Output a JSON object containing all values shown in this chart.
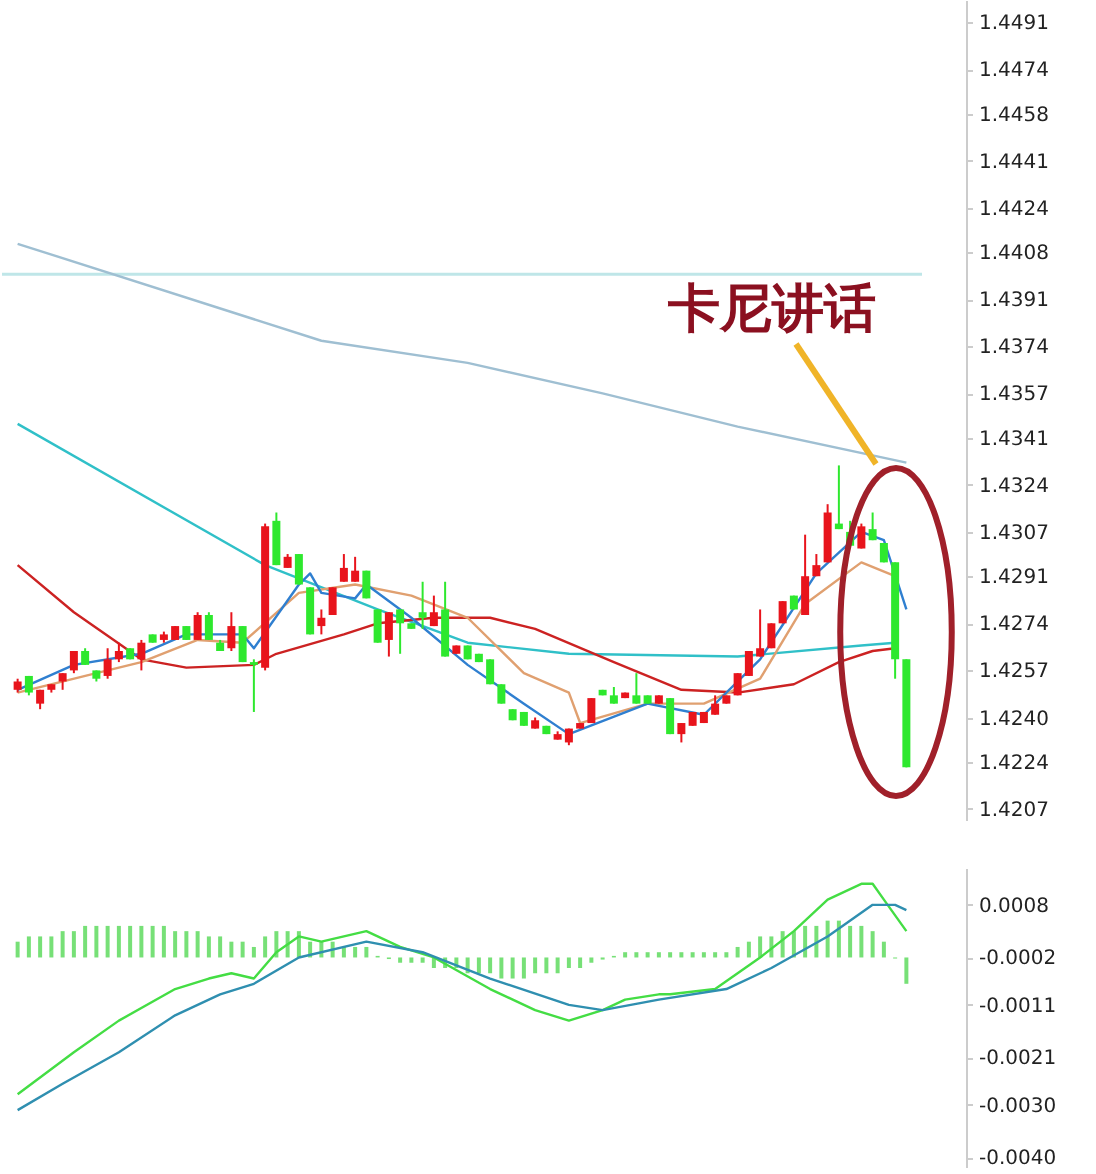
{
  "chart_data": [
    {
      "type": "candlestick",
      "categories": [
        null,
        null,
        null,
        null,
        null,
        null,
        null,
        null,
        null,
        null,
        null,
        null,
        null,
        null,
        null,
        null,
        null,
        null,
        null,
        null,
        null,
        null,
        null,
        null,
        null,
        null,
        null,
        null,
        null,
        null,
        null,
        null,
        null,
        null,
        null,
        null,
        null,
        null,
        null,
        null,
        null,
        null,
        null,
        null,
        null,
        null,
        null,
        null,
        null,
        null,
        null,
        null,
        null,
        null,
        null,
        null,
        null,
        null,
        null,
        null,
        null,
        null,
        null,
        null,
        null,
        null,
        null,
        null,
        null,
        null,
        null,
        null,
        null,
        null,
        null,
        null,
        null,
        null,
        null,
        null
      ],
      "ohlc": [
        [
          1.425,
          1.4254,
          1.4249,
          1.4253
        ],
        [
          1.4255,
          1.4255,
          1.4248,
          1.4249
        ],
        [
          1.4245,
          1.425,
          1.4243,
          1.425
        ],
        [
          1.425,
          1.4252,
          1.4249,
          1.4252
        ],
        [
          1.4253,
          1.4256,
          1.425,
          1.4256
        ],
        [
          1.4257,
          1.4264,
          1.4256,
          1.4264
        ],
        [
          1.4264,
          1.4265,
          1.4259,
          1.4259
        ],
        [
          1.4257,
          1.4257,
          1.4253,
          1.4254
        ],
        [
          1.4255,
          1.4265,
          1.4254,
          1.4261
        ],
        [
          1.4261,
          1.4267,
          1.426,
          1.4264
        ],
        [
          1.4265,
          1.4265,
          1.4261,
          1.4261
        ],
        [
          1.4261,
          1.4268,
          1.4257,
          1.4267
        ],
        [
          1.427,
          1.427,
          1.4267,
          1.4267
        ],
        [
          1.4268,
          1.4271,
          1.4267,
          1.427
        ],
        [
          1.4268,
          1.4273,
          1.4268,
          1.4273
        ],
        [
          1.4273,
          1.4273,
          1.4268,
          1.4268
        ],
        [
          1.4268,
          1.4278,
          1.4268,
          1.4277
        ],
        [
          1.4277,
          1.4278,
          1.4268,
          1.4268
        ],
        [
          1.4267,
          1.4268,
          1.4264,
          1.4264
        ],
        [
          1.4265,
          1.4278,
          1.4264,
          1.4273
        ],
        [
          1.4273,
          1.4273,
          1.426,
          1.426
        ],
        [
          1.426,
          1.4261,
          1.4242,
          1.4259
        ],
        [
          1.4258,
          1.431,
          1.4257,
          1.4309
        ],
        [
          1.4311,
          1.4314,
          1.4295,
          1.4295
        ],
        [
          1.4294,
          1.4299,
          1.4294,
          1.4298
        ],
        [
          1.4299,
          1.4299,
          1.4288,
          1.4288
        ],
        [
          1.4287,
          1.4287,
          1.427,
          1.427
        ],
        [
          1.4273,
          1.4279,
          1.427,
          1.4276
        ],
        [
          1.4277,
          1.4287,
          1.4277,
          1.4287
        ],
        [
          1.4289,
          1.4299,
          1.4289,
          1.4294
        ],
        [
          1.4289,
          1.4298,
          1.4289,
          1.4293
        ],
        [
          1.4293,
          1.4293,
          1.4283,
          1.4283
        ],
        [
          1.4279,
          1.4279,
          1.4267,
          1.4267
        ],
        [
          1.4268,
          1.4278,
          1.4262,
          1.4278
        ],
        [
          1.4279,
          1.4279,
          1.4263,
          1.4274
        ],
        [
          1.4274,
          1.4274,
          1.4272,
          1.4272
        ],
        [
          1.4278,
          1.4289,
          1.4272,
          1.4276
        ],
        [
          1.4273,
          1.4284,
          1.4273,
          1.4278
        ],
        [
          1.4279,
          1.4289,
          1.4262,
          1.4262
        ],
        [
          1.4263,
          1.4266,
          1.4263,
          1.4266
        ],
        [
          1.4266,
          1.4266,
          1.4261,
          1.4261
        ],
        [
          1.4263,
          1.4263,
          1.426,
          1.426
        ],
        [
          1.4261,
          1.4261,
          1.4252,
          1.4252
        ],
        [
          1.4252,
          1.4252,
          1.4245,
          1.4245
        ],
        [
          1.4243,
          1.4243,
          1.4239,
          1.4239
        ],
        [
          1.4242,
          1.4242,
          1.4237,
          1.4237
        ],
        [
          1.4236,
          1.424,
          1.4236,
          1.4239
        ],
        [
          1.4237,
          1.4237,
          1.4234,
          1.4234
        ],
        [
          1.4232,
          1.4235,
          1.4232,
          1.4234
        ],
        [
          1.4231,
          1.4236,
          1.423,
          1.4236
        ],
        [
          1.4236,
          1.4238,
          1.4236,
          1.4238
        ],
        [
          1.4238,
          1.4247,
          1.4238,
          1.4247
        ],
        [
          1.425,
          1.425,
          1.4248,
          1.4248
        ],
        [
          1.4248,
          1.4251,
          1.4245,
          1.4245
        ],
        [
          1.4247,
          1.4249,
          1.4247,
          1.4249
        ],
        [
          1.4248,
          1.4256,
          1.4245,
          1.4245
        ],
        [
          1.4248,
          1.4248,
          1.4245,
          1.4245
        ],
        [
          1.4245,
          1.4248,
          1.4245,
          1.4248
        ],
        [
          1.4247,
          1.4247,
          1.4234,
          1.4234
        ],
        [
          1.4234,
          1.4238,
          1.4231,
          1.4238
        ],
        [
          1.4237,
          1.4242,
          1.4237,
          1.4242
        ],
        [
          1.4238,
          1.4242,
          1.4238,
          1.4242
        ],
        [
          1.4241,
          1.4248,
          1.4241,
          1.4245
        ],
        [
          1.4245,
          1.4248,
          1.4245,
          1.4248
        ],
        [
          1.4248,
          1.4256,
          1.4248,
          1.4256
        ],
        [
          1.4255,
          1.4264,
          1.4255,
          1.4264
        ],
        [
          1.4262,
          1.4279,
          1.4262,
          1.4265
        ],
        [
          1.4265,
          1.4274,
          1.4265,
          1.4274
        ],
        [
          1.4274,
          1.4282,
          1.4274,
          1.4282
        ],
        [
          1.4284,
          1.4284,
          1.4279,
          1.4279
        ],
        [
          1.4277,
          1.4306,
          1.4277,
          1.4291
        ],
        [
          1.4291,
          1.4299,
          1.4291,
          1.4295
        ],
        [
          1.4296,
          1.4317,
          1.4296,
          1.4314
        ],
        [
          1.431,
          1.4331,
          1.4308,
          1.4308
        ],
        [
          1.4307,
          1.4311,
          1.4302,
          1.4302
        ],
        [
          1.4301,
          1.431,
          1.4301,
          1.4309
        ],
        [
          1.4308,
          1.4314,
          1.4304,
          1.4304
        ],
        [
          1.4303,
          1.4303,
          1.4296,
          1.4296
        ],
        [
          1.4296,
          1.4296,
          1.4254,
          1.4261
        ],
        [
          1.4261,
          1.4261,
          1.4222,
          1.4222
        ]
      ],
      "colors": [
        "#e8141c",
        "#2ee82e",
        "#e8141c",
        "#e8141c",
        "#e8141c",
        "#e8141c",
        "#2ee82e",
        "#2ee82e",
        "#e8141c",
        "#e8141c",
        "#2ee82e",
        "#e8141c",
        "#2ee82e",
        "#e8141c",
        "#e8141c",
        "#2ee82e",
        "#e8141c",
        "#2ee82e",
        "#2ee82e",
        "#e8141c",
        "#2ee82e",
        "#2ee82e",
        "#e8141c",
        "#2ee82e",
        "#e8141c",
        "#2ee82e",
        "#2ee82e",
        "#e8141c",
        "#e8141c",
        "#e8141c",
        "#e8141c",
        "#2ee82e",
        "#2ee82e",
        "#e8141c",
        "#2ee82e",
        "#2ee82e",
        "#2ee82e",
        "#e8141c",
        "#2ee82e",
        "#e8141c",
        "#2ee82e",
        "#2ee82e",
        "#2ee82e",
        "#2ee82e",
        "#2ee82e",
        "#2ee82e",
        "#e8141c",
        "#2ee82e",
        "#e8141c",
        "#e8141c",
        "#e8141c",
        "#e8141c",
        "#2ee82e",
        "#2ee82e",
        "#e8141c",
        "#2ee82e",
        "#2ee82e",
        "#e8141c",
        "#2ee82e",
        "#e8141c",
        "#e8141c",
        "#e8141c",
        "#e8141c",
        "#e8141c",
        "#e8141c",
        "#e8141c",
        "#e8141c",
        "#e8141c",
        "#e8141c",
        "#2ee82e",
        "#e8141c",
        "#e8141c",
        "#e8141c",
        "#2ee82e",
        "#2ee82e",
        "#e8141c",
        "#2ee82e",
        "#2ee82e",
        "#2ee82e",
        "#2ee82e"
      ],
      "series": [
        {
          "type": "line",
          "color": "#9fbfd2",
          "values": [
            1.4411,
            null,
            null,
            null,
            null,
            null,
            null,
            null,
            null,
            null,
            null,
            null,
            null,
            null,
            null,
            null,
            null,
            null,
            null,
            null,
            null,
            null,
            null,
            null,
            null,
            null,
            null,
            1.4376,
            null,
            null,
            null,
            null,
            null,
            null,
            null,
            null,
            null,
            null,
            null,
            null,
            1.4368,
            null,
            null,
            null,
            null,
            null,
            null,
            null,
            null,
            null,
            null,
            null,
            1.4357,
            null,
            null,
            null,
            null,
            null,
            null,
            null,
            null,
            null,
            null,
            null,
            1.4345,
            null,
            null,
            null,
            null,
            null,
            null,
            null,
            null,
            null,
            null,
            null,
            null,
            null,
            null,
            1.4332
          ]
        },
        {
          "type": "line",
          "color": "#30c0c8",
          "values": [
            1.4346,
            null,
            null,
            null,
            null,
            null,
            null,
            null,
            null,
            null,
            null,
            null,
            null,
            null,
            null,
            null,
            null,
            null,
            null,
            null,
            null,
            null,
            1.4295,
            null,
            null,
            null,
            null,
            null,
            null,
            null,
            null,
            null,
            1.4279,
            null,
            null,
            null,
            null,
            null,
            null,
            null,
            1.4267,
            null,
            null,
            null,
            null,
            null,
            null,
            null,
            null,
            1.4263,
            null,
            null,
            null,
            null,
            null,
            null,
            null,
            null,
            null,
            null,
            null,
            null,
            null,
            null,
            1.4262,
            null,
            null,
            null,
            null,
            null,
            null,
            null,
            null,
            null,
            null,
            1.4266,
            null,
            null,
            1.4267,
            null
          ]
        },
        {
          "type": "line",
          "color": "#cc2222",
          "values": [
            1.4295,
            null,
            null,
            null,
            null,
            1.4278,
            null,
            null,
            null,
            null,
            null,
            1.4261,
            null,
            null,
            null,
            1.4258,
            null,
            null,
            null,
            null,
            null,
            1.4259,
            null,
            1.4263,
            null,
            null,
            null,
            null,
            null,
            1.427,
            null,
            null,
            1.4274,
            null,
            null,
            null,
            null,
            1.4276,
            null,
            null,
            null,
            null,
            1.4276,
            null,
            null,
            null,
            1.4272,
            null,
            null,
            null,
            null,
            null,
            null,
            1.426,
            null,
            null,
            null,
            null,
            null,
            1.425,
            null,
            null,
            null,
            null,
            1.4249,
            null,
            null,
            null,
            null,
            1.4252,
            null,
            null,
            null,
            1.426,
            null,
            null,
            1.4264,
            null,
            1.4265,
            null
          ]
        },
        {
          "type": "line",
          "color": "#e0a070",
          "values": [
            1.4249,
            null,
            null,
            null,
            null,
            null,
            null,
            1.4256,
            null,
            null,
            null,
            1.426,
            null,
            null,
            null,
            null,
            1.4268,
            null,
            null,
            null,
            1.4267,
            null,
            null,
            null,
            null,
            1.4285,
            null,
            null,
            null,
            null,
            1.4288,
            null,
            null,
            null,
            null,
            1.4284,
            null,
            null,
            null,
            null,
            1.4276,
            null,
            null,
            null,
            null,
            1.4256,
            null,
            null,
            null,
            1.4249,
            1.4238,
            null,
            null,
            null,
            null,
            null,
            1.4245,
            null,
            null,
            null,
            null,
            1.4245,
            null,
            null,
            null,
            null,
            1.4254,
            null,
            null,
            null,
            1.4281,
            null,
            null,
            null,
            null,
            1.4296,
            null,
            null,
            1.4291,
            null
          ]
        },
        {
          "type": "line",
          "color": "#2f7fd0",
          "values": [
            1.425,
            null,
            null,
            null,
            null,
            1.4259,
            null,
            null,
            null,
            null,
            null,
            1.4263,
            null,
            null,
            null,
            1.427,
            null,
            null,
            null,
            null,
            1.427,
            1.4265,
            null,
            null,
            null,
            1.4288,
            1.4292,
            1.4285,
            null,
            null,
            1.4283,
            1.4288,
            null,
            null,
            null,
            1.4276,
            null,
            null,
            null,
            null,
            1.4259,
            null,
            null,
            null,
            null,
            1.4245,
            null,
            null,
            null,
            1.4234,
            null,
            null,
            null,
            null,
            null,
            null,
            1.4245,
            null,
            null,
            null,
            null,
            1.4241,
            null,
            null,
            null,
            null,
            1.4261,
            null,
            null,
            null,
            null,
            1.4292,
            null,
            null,
            null,
            1.4307,
            null,
            1.4304,
            null,
            1.4279
          ]
        }
      ],
      "ref_lines": [
        {
          "axis": "y",
          "value": 1.44,
          "color": "#bfe6e8"
        }
      ],
      "ylim": [
        1.4203,
        1.4499
      ],
      "yticks": [
        1.4491,
        1.4474,
        1.4458,
        1.4441,
        1.4424,
        1.4408,
        1.4391,
        1.4374,
        1.4357,
        1.4341,
        1.4324,
        1.4307,
        1.4291,
        1.4274,
        1.4257,
        {
          "value": 1.424,
          "label": "1.4240"
        },
        1.4224,
        1.4207
      ],
      "annotations": [
        "卡尼讲话"
      ],
      "tick_labels": "y"
    },
    {
      "type": "bar",
      "categories": [
        null,
        null,
        null,
        null,
        null,
        null,
        null,
        null,
        null,
        null,
        null,
        null,
        null,
        null,
        null,
        null,
        null,
        null,
        null,
        null,
        null,
        null,
        null,
        null,
        null,
        null,
        null,
        null,
        null,
        null,
        null,
        null,
        null,
        null,
        null,
        null,
        null,
        null,
        null,
        null,
        null,
        null,
        null,
        null,
        null,
        null,
        null,
        null,
        null,
        null,
        null,
        null,
        null,
        null,
        null,
        null,
        null,
        null,
        null,
        null,
        null,
        null,
        null,
        null,
        null,
        null,
        null,
        null,
        null,
        null,
        null,
        null,
        null,
        null,
        null,
        null,
        null,
        null,
        null,
        null
      ],
      "color": "#77e077",
      "values": [
        0.0003,
        0.0004,
        0.0004,
        0.0004,
        0.0005,
        0.0005,
        0.0006,
        0.0006,
        0.0006,
        0.0006,
        0.0006,
        0.0006,
        0.0006,
        0.0006,
        0.0005,
        0.0005,
        0.0005,
        0.0004,
        0.0004,
        0.0003,
        0.0003,
        0.0002,
        0.0004,
        0.0005,
        0.0005,
        0.0005,
        0.0003,
        0.0003,
        0.0003,
        0.0002,
        0.0002,
        0.0002,
        3e-05,
        -3e-05,
        -0.0001,
        -0.0001,
        -0.0001,
        -0.0002,
        -0.0002,
        -0.0002,
        -0.0003,
        -0.0003,
        -0.0003,
        -0.0004,
        -0.0004,
        -0.0004,
        -0.0003,
        -0.0003,
        -0.0003,
        -0.0002,
        -0.0002,
        -0.0001,
        -4e-05,
        3e-05,
        0.0001,
        0.0001,
        0.0001,
        0.0001,
        0.0001,
        0.0001,
        0.0001,
        0.0001,
        0.0001,
        0.0001,
        0.0002,
        0.0003,
        0.0004,
        0.0004,
        0.0005,
        0.0005,
        0.0006,
        0.0006,
        0.0007,
        0.0007,
        0.0006,
        0.0006,
        0.0005,
        0.0003,
        -2e-05,
        -0.0005
      ],
      "base": [
        -0.0002,
        -0.0002,
        -0.0002,
        -0.0002,
        -0.0002,
        -0.0002,
        -0.0002,
        -0.0002,
        -0.0002,
        -0.0002,
        -0.0002,
        -0.0002,
        -0.0002,
        -0.0002,
        -0.0002,
        -0.0002,
        -0.0002,
        -0.0002,
        -0.0002,
        -0.0002,
        -0.0002,
        -0.0002,
        -0.0002,
        -0.0002,
        -0.0002,
        -0.0002,
        -0.0002,
        -0.0002,
        -0.0002,
        -0.0002,
        -0.0002,
        -0.0002,
        -0.0002,
        -0.0002,
        -0.0002,
        -0.0002,
        -0.0002,
        -0.0002,
        -0.0002,
        -0.0002,
        -0.0002,
        -0.0002,
        -0.0002,
        -0.0002,
        -0.0002,
        -0.0002,
        -0.0002,
        -0.0002,
        -0.0002,
        -0.0002,
        -0.0002,
        -0.0002,
        -0.0002,
        -0.0002,
        -0.0002,
        -0.0002,
        -0.0002,
        -0.0002,
        -0.0002,
        -0.0002,
        -0.0002,
        -0.0002,
        -0.0002,
        -0.0002,
        -0.0002,
        -0.0002,
        -0.0002,
        -0.0002,
        -0.0002,
        -0.0002,
        -0.0002,
        -0.0002,
        -0.0002,
        -0.0002,
        -0.0002,
        -0.0002,
        -0.0002,
        -0.0002,
        -0.0002,
        -0.0002
      ],
      "series": [
        {
          "type": "line",
          "color": "#44dd44",
          "values": [
            -0.0028,
            null,
            null,
            null,
            null,
            -0.002,
            null,
            null,
            null,
            -0.0014,
            null,
            null,
            null,
            null,
            -0.0008,
            null,
            null,
            -0.0006,
            null,
            -0.0005,
            null,
            -0.0006,
            null,
            -0.0001,
            null,
            0.0002,
            null,
            0.0001,
            null,
            null,
            null,
            0.0003,
            null,
            null,
            0,
            null,
            null,
            -0.0002,
            null,
            null,
            null,
            null,
            -0.0008,
            null,
            null,
            null,
            -0.0012,
            null,
            null,
            -0.0014,
            null,
            null,
            -0.0012,
            null,
            -0.001,
            null,
            null,
            -0.0009,
            -0.0009,
            null,
            null,
            null,
            -0.0008,
            null,
            null,
            null,
            -0.0002,
            null,
            null,
            0.0003,
            null,
            null,
            0.0009,
            null,
            null,
            0.0012,
            0.0012,
            0.0009,
            null,
            0.0003
          ]
        },
        {
          "type": "line",
          "color": "#2f8fb0",
          "values": [
            -0.0031,
            null,
            null,
            null,
            -0.0026,
            null,
            null,
            null,
            null,
            -0.002,
            null,
            null,
            null,
            null,
            -0.0013,
            null,
            null,
            null,
            -0.0009,
            null,
            null,
            -0.0007,
            null,
            null,
            null,
            -0.0002,
            null,
            null,
            null,
            null,
            null,
            0.0001,
            null,
            null,
            null,
            null,
            -0.0001,
            null,
            null,
            null,
            null,
            null,
            -0.0006,
            null,
            null,
            null,
            null,
            null,
            null,
            -0.0011,
            null,
            null,
            -0.0012,
            null,
            null,
            null,
            null,
            -0.001,
            null,
            null,
            null,
            null,
            null,
            -0.0008,
            null,
            null,
            null,
            -0.0004,
            null,
            null,
            null,
            null,
            0.0002,
            null,
            null,
            null,
            0.0008,
            null,
            0.0008,
            0.0007
          ]
        }
      ],
      "ylim": [
        -0.0042,
        0.0015
      ],
      "yticks": [
        0.0008,
        -0.0002,
        -0.0011,
        -0.0021,
        {
          "value": -0.003,
          "label": "-0.0030"
        },
        {
          "value": -0.004,
          "label": "-0.0040"
        }
      ],
      "tick_labels": "y"
    }
  ]
}
